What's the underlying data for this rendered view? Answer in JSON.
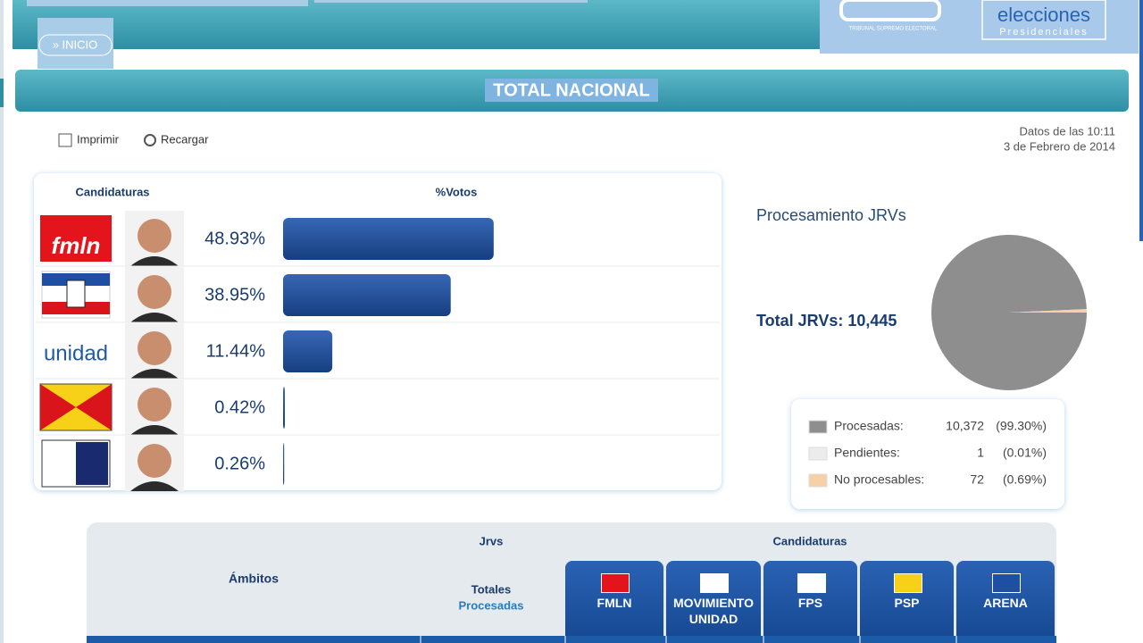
{
  "header": {
    "nav_button": "» INICIO",
    "logo_tse": "TRIBUNAL SUPREMO ELECTORAL",
    "logo_title": "elecciones",
    "logo_subtitle": "Presidenciales"
  },
  "page_title": "TOTAL NACIONAL",
  "toolbar": {
    "print": "Imprimir",
    "reload": "Recargar"
  },
  "timestamp": {
    "time": "Datos de las 10:11",
    "date": "3 de Febrero de 2014"
  },
  "results": {
    "header_candidates": "Candidaturas",
    "header_votes": "%Votos",
    "rows": [
      {
        "logo_text": "fmln",
        "value": 48.93,
        "value_label": "48.93%"
      },
      {
        "value": 38.95,
        "value_label": "38.95%"
      },
      {
        "logo_text": "unidad",
        "value": 11.44,
        "value_label": "11.44%"
      },
      {
        "value": 0.42,
        "value_label": "0.42%"
      },
      {
        "value": 0.26,
        "value_label": "0.26%"
      }
    ]
  },
  "jrv": {
    "title": "Procesamiento JRVs",
    "total": "Total JRVs: 10,445",
    "legend": [
      {
        "label": "Procesadas:",
        "value": 10372,
        "value_label": "10,372",
        "share": "(99.30%)",
        "color": "#8e8e8e"
      },
      {
        "label": "Pendientes:",
        "value": 1,
        "value_label": "1",
        "share": "(0.01%)",
        "color": "#ececec"
      },
      {
        "label": "No procesables:",
        "value": 72,
        "value_label": "72",
        "share": "(0.69%)",
        "color": "#f6d0a6"
      }
    ]
  },
  "table": {
    "col_scope": "Ámbitos",
    "col_jrvs": "Jrvs",
    "col_candidates": "Candidaturas",
    "jrvs_totals": "Totales",
    "jrvs_processed": "Procesadas",
    "parties": [
      "FMLN",
      "MOVIMIENTO UNIDAD",
      "FPS",
      "PSP",
      "ARENA"
    ]
  }
}
